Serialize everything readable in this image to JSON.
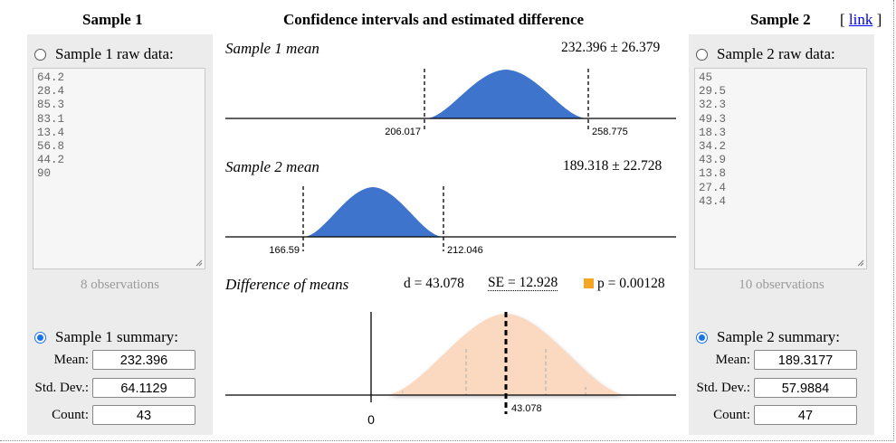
{
  "headers": {
    "sample1": "Sample 1",
    "middle": "Confidence intervals and estimated difference",
    "sample2": "Sample 2",
    "link_open": "[",
    "link_text": "link",
    "link_close": "]"
  },
  "sample1": {
    "raw_label": "Sample 1 raw data:",
    "raw_values": [
      "64.2",
      "28.4",
      "85.3",
      "83.1",
      "13.4",
      "56.8",
      "44.2",
      "90"
    ],
    "observations": "8 observations",
    "summary_label": "Sample 1 summary:",
    "mean_label": "Mean:",
    "mean": "232.396",
    "sd_label": "Std. Dev.:",
    "sd": "64.1129",
    "count_label": "Count:",
    "count": "43"
  },
  "sample2": {
    "raw_label": "Sample 2 raw data:",
    "raw_values": [
      "45",
      "29.5",
      "32.3",
      "49.3",
      "18.3",
      "34.2",
      "43.9",
      "13.8",
      "27.4",
      "43.4"
    ],
    "observations": "10 observations",
    "summary_label": "Sample 2 summary:",
    "mean_label": "Mean:",
    "mean": "189.3177",
    "sd_label": "Std. Dev.:",
    "sd": "57.9884",
    "count_label": "Count:",
    "count": "47"
  },
  "plots": {
    "s1": {
      "title": "Sample 1 mean",
      "summary": "232.396 ± 26.379",
      "lower": "206.017",
      "upper": "258.775"
    },
    "s2": {
      "title": "Sample 2 mean",
      "summary": "189.318 ± 22.728",
      "lower": "166.59",
      "upper": "212.046"
    },
    "diff": {
      "title": "Difference of means",
      "d": "d = 43.078",
      "se": "SE = 12.928",
      "p": "p = 0.00128",
      "zero": "0",
      "marker": "43.078"
    }
  },
  "colors": {
    "curve": "#3f74cc",
    "diff_fill": "#fbd9c1",
    "p_square": "#f5a623",
    "accent": "#1a73e8"
  }
}
